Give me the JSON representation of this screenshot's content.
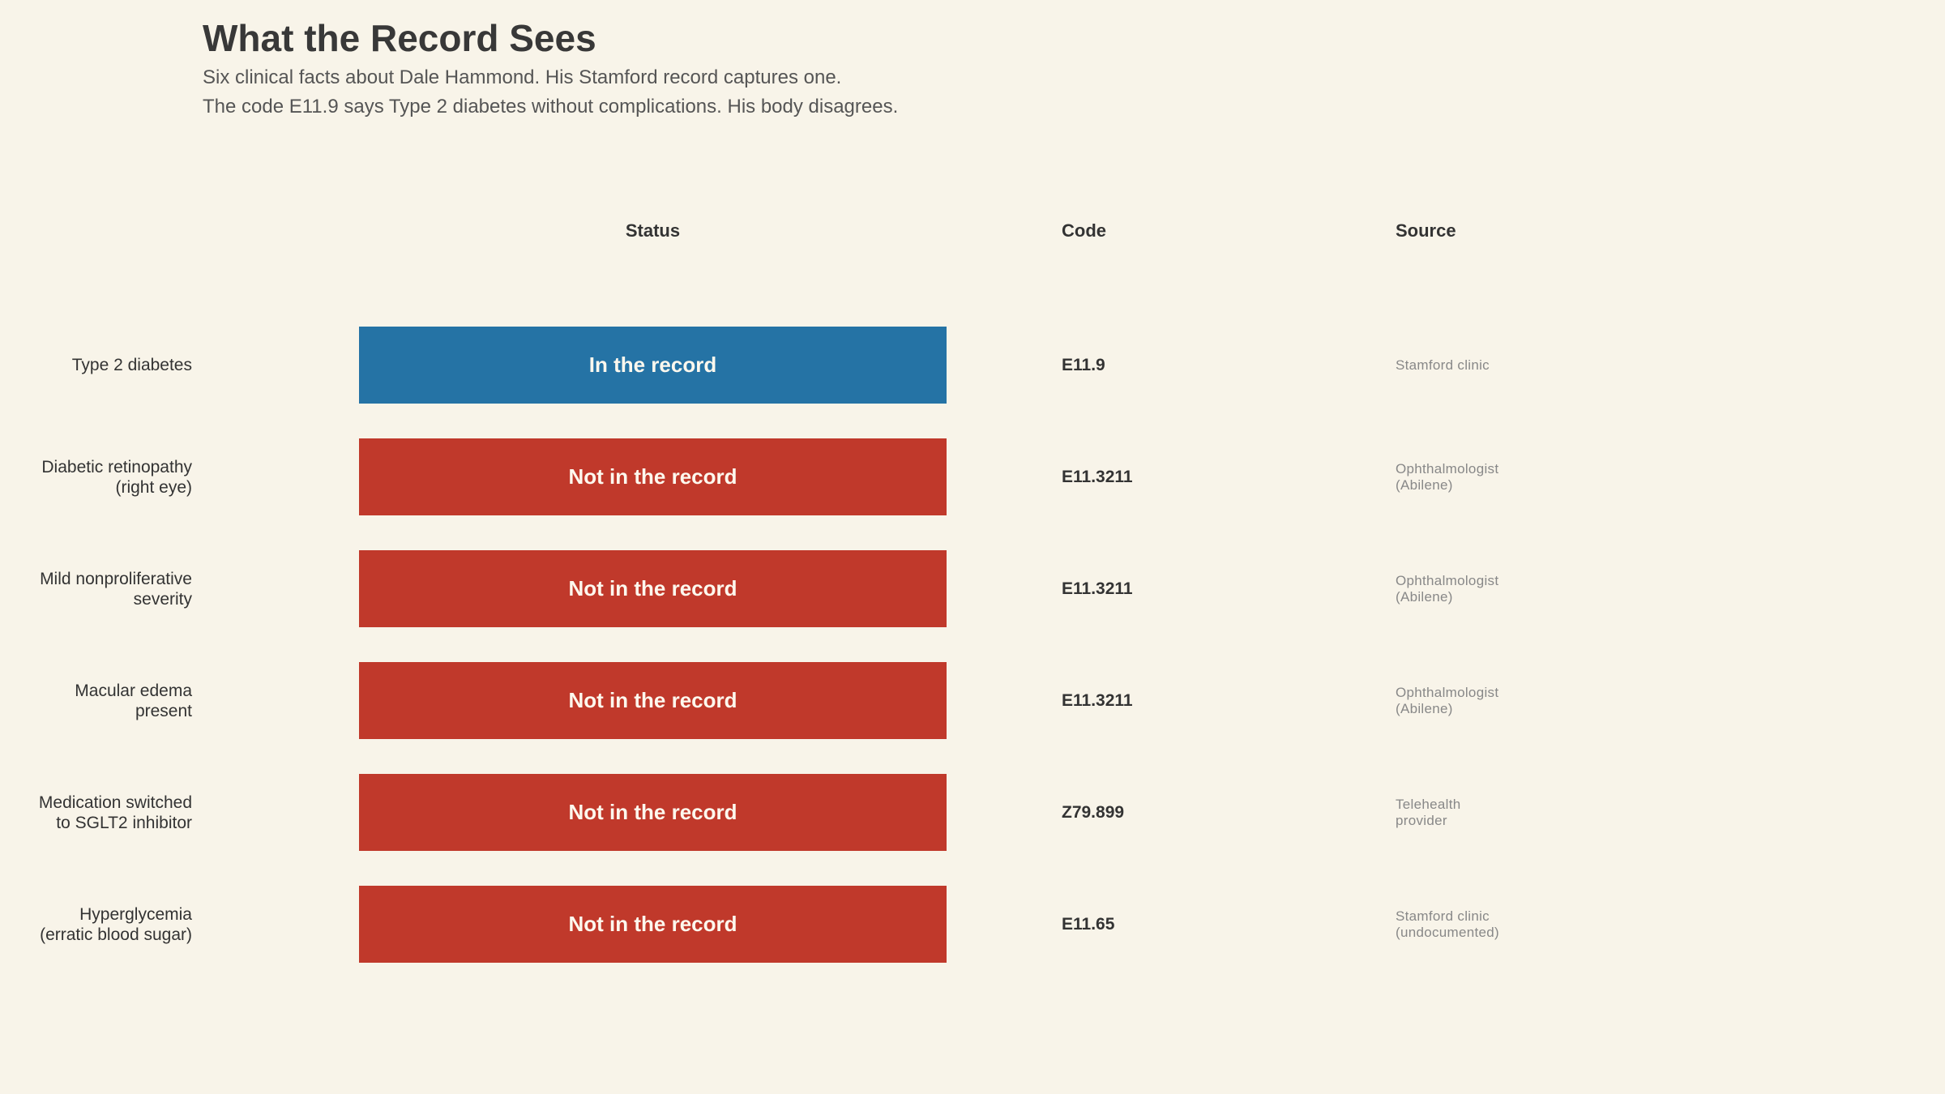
{
  "title": "What the Record Sees",
  "subtitle_line1": "Six clinical facts about Dale Hammond. His Stamford record captures one.",
  "subtitle_line2": "The code E11.9 says Type 2 diabetes without complications. His body disagrees.",
  "headers": {
    "status": "Status",
    "code": "Code",
    "source": "Source"
  },
  "colors": {
    "background": "#f8f4e9",
    "in_record": "#2573a5",
    "not_in_record": "#c0392b"
  },
  "chart_data": {
    "type": "table",
    "title": "What the Record Sees",
    "columns": [
      "",
      "Status",
      "Code",
      "Source"
    ],
    "rows": [
      {
        "fact": "Type 2 diabetes",
        "status": "In the record",
        "in_record": true,
        "code": "E11.9",
        "source": "Stamford clinic"
      },
      {
        "fact": "Diabetic retinopathy\n(right eye)",
        "status": "Not in the record",
        "in_record": false,
        "code": "E11.3211",
        "source": "Ophthalmologist\n(Abilene)"
      },
      {
        "fact": "Mild nonproliferative\nseverity",
        "status": "Not in the record",
        "in_record": false,
        "code": "E11.3211",
        "source": "Ophthalmologist\n(Abilene)"
      },
      {
        "fact": "Macular edema\npresent",
        "status": "Not in the record",
        "in_record": false,
        "code": "E11.3211",
        "source": "Ophthalmologist\n(Abilene)"
      },
      {
        "fact": "Medication switched\nto SGLT2 inhibitor",
        "status": "Not in the record",
        "in_record": false,
        "code": "Z79.899",
        "source": "Telehealth\nprovider"
      },
      {
        "fact": "Hyperglycemia\n(erratic blood sugar)",
        "status": "Not in the record",
        "in_record": false,
        "code": "E11.65",
        "source": "Stamford clinic\n(undocumented)"
      }
    ]
  }
}
